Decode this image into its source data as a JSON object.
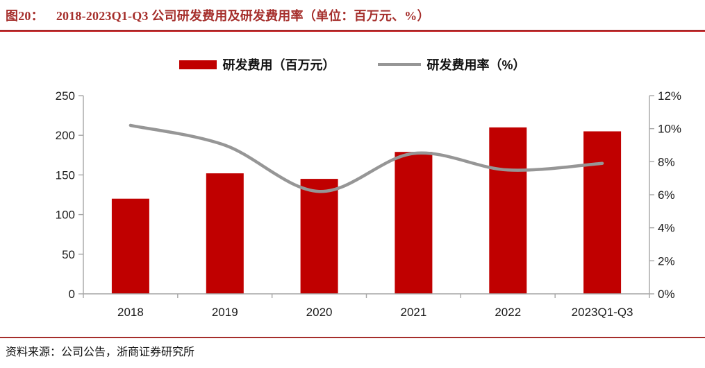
{
  "header": {
    "fig_label": "图20：",
    "title": "2018-2023Q1-Q3 公司研发费用及研发费用率（单位：百万元、%）"
  },
  "legend": [
    {
      "label": "研发费用（百万元）",
      "swatch": "bar",
      "color": "#C00000"
    },
    {
      "label": "研发费用率（%）",
      "swatch": "line",
      "color": "#969696"
    }
  ],
  "footer": {
    "source": "资料来源：公司公告，浙商证券研究所"
  },
  "colors": {
    "bar": "#C00000",
    "line": "#969696",
    "axis": "#A6A6A6",
    "axis_text": "#1a1a1a",
    "title_red": "#A52E2B"
  },
  "chart_data": {
    "type": "bar",
    "combo": "bar+line",
    "title": "2018-2023Q1-Q3 公司研发费用及研发费用率（单位：百万元、%）",
    "categories": [
      "2018",
      "2019",
      "2020",
      "2021",
      "2022",
      "2023Q1-Q3"
    ],
    "series": [
      {
        "name": "研发费用（百万元）",
        "type": "bar",
        "axis": "left",
        "color": "#C00000",
        "values": [
          120,
          152,
          145,
          179,
          210,
          205
        ]
      },
      {
        "name": "研发费用率（%）",
        "type": "line",
        "axis": "right",
        "color": "#969696",
        "values": [
          10.2,
          9.0,
          6.2,
          8.5,
          7.5,
          7.9
        ]
      }
    ],
    "left_axis": {
      "ticks": [
        0,
        50,
        100,
        150,
        200,
        250
      ],
      "range": [
        0,
        250
      ],
      "suffix": ""
    },
    "right_axis": {
      "ticks": [
        0,
        2,
        4,
        6,
        8,
        10,
        12
      ],
      "range": [
        0,
        12
      ],
      "suffix": "%"
    },
    "grid": false,
    "legend_position": "top"
  }
}
